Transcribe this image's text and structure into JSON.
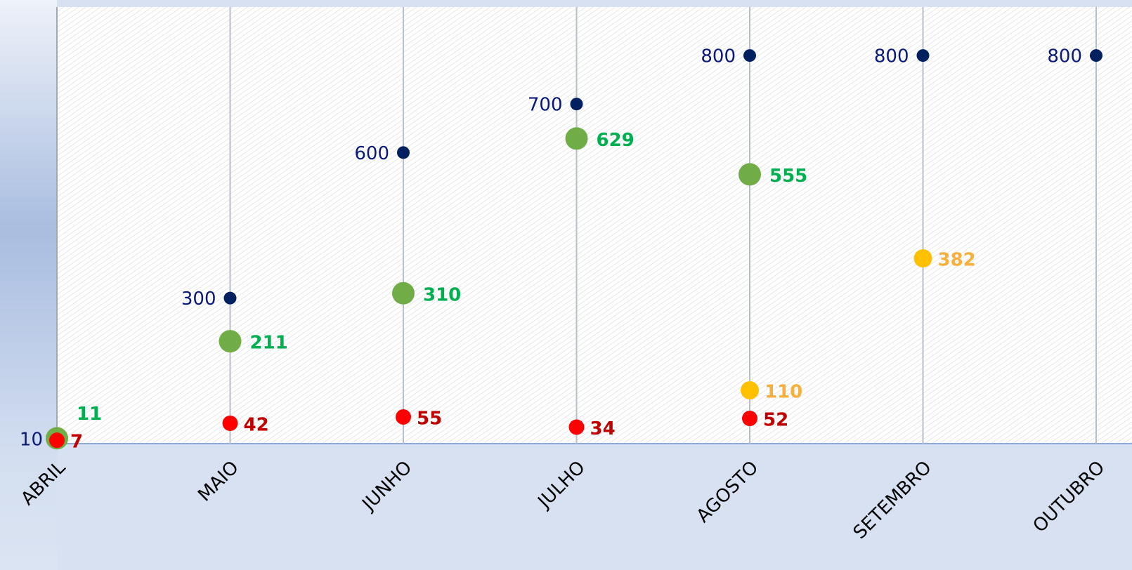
{
  "chart_data": {
    "type": "scatter",
    "categories": [
      "ABRIL",
      "MAIO",
      "JUNHO",
      "JULHO",
      "AGOSTO",
      "SETEMBRO",
      "OUTUBRO"
    ],
    "ylim": [
      0,
      900
    ],
    "grid": true,
    "series": [
      {
        "color": "#002060",
        "label_color": "#0a1a7a",
        "values": [
          10,
          300,
          600,
          700,
          800,
          800,
          800
        ]
      },
      {
        "color": "#70ad47",
        "label_color": "#00b050",
        "values": [
          11,
          211,
          310,
          629,
          555,
          null,
          null
        ]
      },
      {
        "color": "#ff0000",
        "label_color": "#c00000",
        "values": [
          7,
          42,
          55,
          34,
          52,
          null,
          null
        ]
      },
      {
        "color": "#ffc000",
        "label_color": "#f7b03c",
        "values": [
          null,
          null,
          null,
          null,
          110,
          382,
          null
        ]
      }
    ]
  }
}
